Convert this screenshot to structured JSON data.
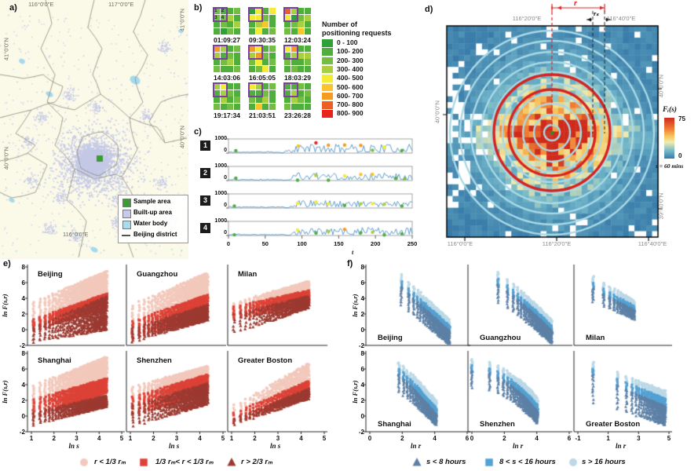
{
  "panel_a": {
    "label": "a)",
    "tick_labels": {
      "top": [
        "116°0'0\"E",
        "117°0'0\"E"
      ],
      "bottom": [
        "116°0'0\"E"
      ],
      "left": [
        "41°0'0\"N",
        "40°0'0\"N"
      ],
      "right": [
        "41°0'0\"N",
        "40°0'0\"N"
      ]
    },
    "legend_items": [
      {
        "label": "Sample area",
        "swatch": "square",
        "color": "#3d9b35"
      },
      {
        "label": "Built-up area",
        "swatch": "square",
        "color": "#c7cbe9"
      },
      {
        "label": "Water body",
        "swatch": "square",
        "color": "#a8ddf0"
      },
      {
        "label": "Beijing district",
        "swatch": "line",
        "color": "#55534a"
      }
    ],
    "colors": {
      "background": "#fbf9e8",
      "builtup": "#c5c9e7",
      "water": "#a5daee",
      "district": "#8d8a7d",
      "sample": "#3d9b35"
    }
  },
  "panel_b": {
    "label": "b)",
    "legend_title": "Number of positioning requests",
    "highlight_color": "#7b3fa0",
    "cell_tags": [
      "1",
      "2",
      "3",
      "4"
    ],
    "bins": [
      {
        "label": "0 - 100",
        "color": "#2fa237"
      },
      {
        "label": "100- 200",
        "color": "#4fae3c"
      },
      {
        "label": "200- 300",
        "color": "#73bd43"
      },
      {
        "label": "300- 400",
        "color": "#a9ce3e"
      },
      {
        "label": "400- 500",
        "color": "#f4eb33"
      },
      {
        "label": "500- 600",
        "color": "#f8c52c"
      },
      {
        "label": "600- 700",
        "color": "#f59a22"
      },
      {
        "label": "700- 800",
        "color": "#ee5f26"
      },
      {
        "label": "800- 900",
        "color": "#e8231d"
      }
    ],
    "grids": [
      {
        "time": "01:09:27",
        "cells": [
          2,
          1,
          1,
          2,
          2,
          2,
          3,
          1,
          1,
          2,
          1,
          3,
          1,
          0,
          2,
          1
        ]
      },
      {
        "time": "09:30:35",
        "cells": [
          0,
          4,
          1,
          4,
          4,
          4,
          2,
          1,
          1,
          3,
          5,
          1,
          1,
          4,
          1,
          2
        ]
      },
      {
        "time": "12:03:24",
        "cells": [
          7,
          3,
          1,
          1,
          4,
          0,
          2,
          3,
          1,
          2,
          3,
          1,
          2,
          1,
          5,
          1
        ]
      },
      {
        "time": "14:03:06",
        "cells": [
          6,
          3,
          1,
          2,
          3,
          1,
          2,
          1,
          1,
          2,
          3,
          1,
          2,
          1,
          1,
          2
        ]
      },
      {
        "time": "16:05:05",
        "cells": [
          6,
          4,
          1,
          2,
          3,
          6,
          2,
          1,
          2,
          4,
          1,
          2,
          1,
          2,
          4,
          1
        ]
      },
      {
        "time": "18:03:29",
        "cells": [
          4,
          6,
          1,
          1,
          1,
          3,
          3,
          3,
          2,
          1,
          1,
          2,
          1,
          2,
          1,
          1
        ]
      },
      {
        "time": "19:17:34",
        "cells": [
          3,
          4,
          1,
          1,
          1,
          3,
          2,
          1,
          1,
          3,
          1,
          2,
          2,
          1,
          2,
          1
        ]
      },
      {
        "time": "21:03:51",
        "cells": [
          4,
          3,
          1,
          2,
          1,
          1,
          2,
          1,
          2,
          1,
          3,
          1,
          1,
          5,
          1,
          2
        ]
      },
      {
        "time": "23:26:28",
        "cells": [
          1,
          1,
          2,
          1,
          1,
          3,
          1,
          2,
          1,
          3,
          2,
          1,
          2,
          1,
          1,
          1
        ]
      }
    ]
  },
  "panel_c": {
    "label": "c)",
    "xlabel": "t",
    "xticks": [
      0,
      50,
      100,
      150,
      200,
      250
    ],
    "xmax": 250,
    "ymax": 1000,
    "y_top_label": "1000",
    "y_bottom_label": "0",
    "line_color": "#4f93c8",
    "rows": [
      {
        "badge": "1",
        "seed": 11,
        "quiet_until": 72,
        "quiet_level": 70,
        "active_mean": 330,
        "active_amp": 300,
        "dots": [
          [
            10,
            170,
            1
          ],
          [
            95,
            500,
            5
          ],
          [
            119,
            720,
            8
          ],
          [
            136,
            560,
            6
          ],
          [
            158,
            570,
            6
          ],
          [
            180,
            540,
            6
          ],
          [
            196,
            200,
            2
          ],
          [
            212,
            430,
            4
          ],
          [
            236,
            180,
            1
          ]
        ]
      },
      {
        "badge": "2",
        "seed": 22,
        "quiet_until": 75,
        "quiet_level": 65,
        "active_mean": 300,
        "active_amp": 260,
        "dots": [
          [
            10,
            170,
            1
          ],
          [
            94,
            25,
            1
          ],
          [
            119,
            360,
            3
          ],
          [
            136,
            25,
            1
          ],
          [
            158,
            330,
            4
          ],
          [
            180,
            430,
            5
          ],
          [
            196,
            430,
            5
          ],
          [
            228,
            150,
            1
          ],
          [
            240,
            140,
            2
          ]
        ]
      },
      {
        "badge": "3",
        "seed": 33,
        "quiet_until": 78,
        "quiet_level": 70,
        "active_mean": 310,
        "active_amp": 240,
        "dots": [
          [
            8,
            140,
            1
          ],
          [
            94,
            340,
            4
          ],
          [
            119,
            430,
            4
          ],
          [
            136,
            300,
            4
          ],
          [
            158,
            180,
            1
          ],
          [
            180,
            300,
            3
          ],
          [
            196,
            300,
            4
          ],
          [
            212,
            260,
            3
          ],
          [
            236,
            140,
            1
          ]
        ]
      },
      {
        "badge": "4",
        "seed": 44,
        "quiet_until": 80,
        "quiet_level": 60,
        "active_mean": 300,
        "active_amp": 280,
        "dots": [
          [
            8,
            50,
            1
          ],
          [
            94,
            390,
            4
          ],
          [
            119,
            180,
            1
          ],
          [
            136,
            290,
            3
          ],
          [
            158,
            440,
            6
          ],
          [
            180,
            200,
            1
          ],
          [
            196,
            230,
            3
          ],
          [
            212,
            40,
            1
          ],
          [
            236,
            120,
            1
          ]
        ]
      }
    ]
  },
  "panel_d": {
    "label": "d)",
    "tick_labels": {
      "top": [
        "116°20'0\"E",
        "116°40'0\"E"
      ],
      "bottom": [
        "116°0'0\"E",
        "116°20'0\"E",
        "116°40'0\"E"
      ],
      "left": [
        "40°0'0\"N"
      ],
      "right": [
        "40°0'0\"N",
        "39°40'0\"N"
      ]
    },
    "colorbar": {
      "title": "Fᵢ(s)",
      "max": "75",
      "min": "0",
      "note": "s = 60 mins"
    },
    "annotations": {
      "r_label": "r",
      "rs_label": "rₛ"
    },
    "ring_color": "#a9d9e6",
    "red_ring_color": "#d42422",
    "heat_max": 75
  },
  "panel_e": {
    "label": "e)",
    "ylabel": "ln F(s,r)",
    "xlabel": "ln s",
    "yticks": [
      8,
      6,
      4,
      2,
      0,
      -2
    ],
    "xticks": [
      1,
      2,
      3,
      4,
      5
    ],
    "s_range": [
      3,
      76
    ],
    "classes": [
      {
        "label": "r < 1/3 rₘ",
        "marker": "circle",
        "color": "#f2c9bc"
      },
      {
        "label": "1/3 rₘ< r < 1/3 rₘ",
        "marker": "square",
        "color": "#dd4237"
      },
      {
        "label": "r > 2/3 rₘ",
        "marker": "triangle",
        "color": "#9c3a31"
      }
    ],
    "cities": [
      {
        "name": "Beijing",
        "row": 0,
        "col": 0,
        "density": 1,
        "bands": [
          [
            0.3,
            3.6,
            3.8,
            7.5
          ],
          [
            -0.2,
            1.4,
            2.8,
            4.6
          ],
          [
            -1.7,
            0.5,
            0.0,
            4.3
          ]
        ]
      },
      {
        "name": "Guangzhou",
        "row": 0,
        "col": 1,
        "density": 1,
        "bands": [
          [
            -0.5,
            3.3,
            2.5,
            7.3
          ],
          [
            -1.3,
            1.2,
            1.5,
            4.5
          ],
          [
            -1.6,
            0.3,
            1.2,
            3.2
          ]
        ]
      },
      {
        "name": "Milan",
        "row": 0,
        "col": 2,
        "density": 0.8,
        "bands": [
          [
            1.5,
            3.5,
            3.7,
            6.2
          ],
          [
            1.2,
            3.0,
            3.3,
            5.0
          ],
          [
            -0.6,
            2.2,
            2.8,
            4.3
          ]
        ]
      },
      {
        "name": "Shanghai",
        "row": 1,
        "col": 0,
        "density": 1,
        "bands": [
          [
            0.8,
            4.0,
            4.3,
            7.6
          ],
          [
            -0.3,
            2.2,
            3.0,
            4.8
          ],
          [
            -1.2,
            0.6,
            1.2,
            2.6
          ]
        ]
      },
      {
        "name": "Shenzhen",
        "row": 1,
        "col": 1,
        "density": 1,
        "bands": [
          [
            0.6,
            3.8,
            3.9,
            6.4
          ],
          [
            0.0,
            2.5,
            2.8,
            5.3
          ],
          [
            -1.4,
            1.5,
            1.5,
            4.2
          ]
        ]
      },
      {
        "name": "Greater Boston",
        "row": 1,
        "col": 2,
        "density": 0.45,
        "bands": [
          [
            -0.5,
            1.5,
            3.3,
            6.8
          ],
          [
            -1.0,
            0.5,
            2.5,
            4.5
          ],
          [
            -1.2,
            -0.2,
            2.2,
            3.5
          ]
        ]
      }
    ]
  },
  "panel_f": {
    "label": "f)",
    "ylabel": "ln F(s,r)",
    "xlabel": "ln r",
    "yticks": [
      8,
      6,
      4,
      2,
      0,
      -2
    ],
    "xticks_col": [
      [
        0,
        2,
        4,
        6
      ],
      [
        0,
        2,
        4,
        6
      ],
      [
        -1,
        1,
        3,
        5
      ]
    ],
    "classes": [
      {
        "label": "s < 8 hours",
        "marker": "triangle",
        "color": "#5d80a6"
      },
      {
        "label": "8 < s < 16 hours",
        "marker": "square",
        "color": "#54a1d3"
      },
      {
        "label": "s > 16 hours",
        "marker": "circle",
        "color": "#bcd9e7"
      }
    ],
    "cities": [
      {
        "name": "Beijing",
        "row": 0,
        "col": 0,
        "r_range": [
          7,
          135,
          4
        ],
        "gamma": 1.0,
        "bands": [
          [
            3.0,
            5.5,
            -1.9,
            -0.2
          ],
          [
            5.0,
            6.2,
            -0.8,
            0.5
          ],
          [
            5.8,
            7.1,
            0.0,
            1.3
          ]
        ]
      },
      {
        "name": "Guangzhou",
        "row": 0,
        "col": 1,
        "r_range": [
          5,
          140,
          4
        ],
        "gamma": 1.15,
        "bands": [
          [
            3.4,
            5.8,
            -1.8,
            -0.2
          ],
          [
            5.4,
            6.5,
            -0.8,
            0.4
          ],
          [
            6.2,
            7.4,
            0.0,
            1.2
          ]
        ]
      },
      {
        "name": "Milan",
        "row": 0,
        "col": 2,
        "r_range": [
          1,
          15,
          1
        ],
        "gamma": 1.0,
        "bands": [
          [
            3.5,
            5.3,
            1.3,
            2.5
          ],
          [
            5.0,
            6.0,
            2.2,
            3.0
          ],
          [
            5.8,
            6.8,
            2.8,
            3.8
          ]
        ]
      },
      {
        "name": "Shanghai",
        "row": 1,
        "col": 0,
        "r_range": [
          6,
          60,
          2
        ],
        "gamma": 1.1,
        "bands": [
          [
            3.0,
            5.3,
            -1.2,
            0.2
          ],
          [
            5.1,
            6.1,
            -0.1,
            1.0
          ],
          [
            5.9,
            6.9,
            0.7,
            2.0
          ]
        ]
      },
      {
        "name": "Shenzhen",
        "row": 1,
        "col": 1,
        "r_range": [
          1,
          57,
          2
        ],
        "gamma": 2.0,
        "bands": [
          [
            3.5,
            5.8,
            -1.0,
            0.6
          ],
          [
            5.5,
            6.5,
            0.2,
            1.4
          ],
          [
            6.3,
            7.3,
            1.0,
            2.3
          ]
        ]
      },
      {
        "name": "Greater Boston",
        "row": 1,
        "col": 2,
        "r_range": [
          1,
          120,
          4
        ],
        "gamma": 1.0,
        "bands": [
          [
            1.6,
            5.3,
            -1.2,
            1.2
          ],
          [
            5.1,
            6.1,
            0.8,
            2.2
          ],
          [
            5.9,
            6.9,
            1.8,
            3.2
          ]
        ]
      }
    ]
  },
  "chart_data": [
    {
      "type": "heatmap",
      "panel": "b",
      "title": "Number of positioning requests",
      "bin_labels": [
        "0 - 100",
        "100- 200",
        "200- 300",
        "300- 400",
        "400- 500",
        "500- 600",
        "600- 700",
        "700- 800",
        "800- 900"
      ],
      "times": [
        "01:09:27",
        "09:30:35",
        "12:03:24",
        "14:03:06",
        "16:05:05",
        "18:03:29",
        "19:17:34",
        "21:03:51",
        "23:26:28"
      ],
      "note": "cell values stored as bin indices in panel_b.grids"
    },
    {
      "type": "line",
      "panel": "c",
      "xlim": [
        0,
        250
      ],
      "ylim": [
        0,
        1000
      ],
      "series_labels": [
        "1",
        "2",
        "3",
        "4"
      ],
      "note": "noisy request-count signals: low ~70 until t≈75, oscillating 100-750 after; marked dots in panel_c.rows[].dots as [t, value, bin]"
    },
    {
      "type": "heatmap",
      "panel": "d",
      "value_label": "Fᵢ(s)",
      "value_range": [
        0,
        75
      ],
      "s": "60 mins",
      "note": "radial hotspot centered at 116°20'E/40°N with concentric sampling rings"
    },
    {
      "type": "scatter",
      "panel": "e",
      "xlabel": "ln s",
      "ylabel": "ln F(s,r)",
      "xlim": [
        1,
        5
      ],
      "ylim": [
        -2,
        8
      ],
      "cities": [
        "Beijing",
        "Guangzhou",
        "Milan",
        "Shanghai",
        "Shenzhen",
        "Greater Boston"
      ],
      "classes": [
        "r < 1/3 rₘ",
        "1/3 rₘ< r < 1/3 rₘ",
        "r > 2/3 rₘ"
      ],
      "note": "rising log-log bands; band extents per city in panel_e.cities[].bands as [yBottom@xmin, yTop@xmin, yBottom@xmax, yTop@xmax]"
    },
    {
      "type": "scatter",
      "panel": "f",
      "xlabel": "ln r",
      "ylabel": "ln F(s,r)",
      "xlim": [
        -1,
        6
      ],
      "ylim": [
        -2,
        8
      ],
      "cities": [
        "Beijing",
        "Guangzhou",
        "Milan",
        "Shanghai",
        "Shenzhen",
        "Greater Boston"
      ],
      "classes": [
        "s < 8 hours",
        "8 < s < 16 hours",
        "s > 16 hours"
      ],
      "note": "decreasing log-log bands; extents in panel_f.cities[].bands"
    }
  ]
}
